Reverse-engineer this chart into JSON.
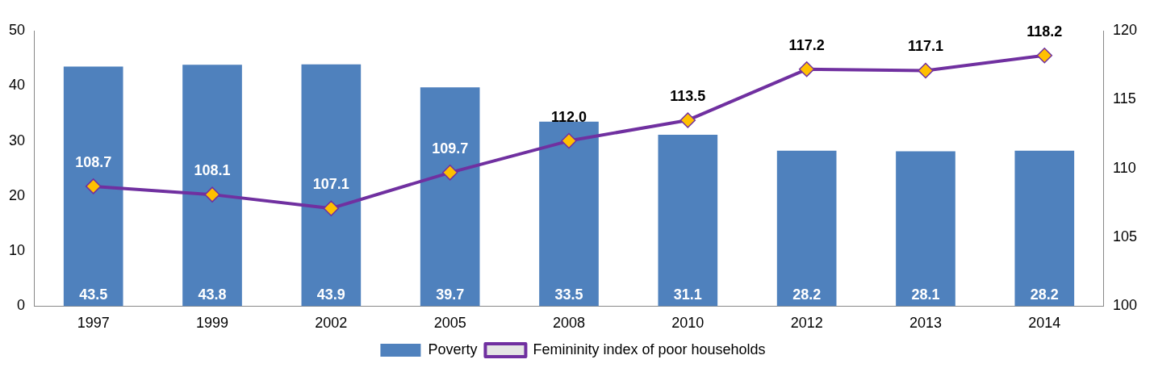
{
  "chart_data": {
    "type": "bar",
    "categories": [
      "1997",
      "1999",
      "2002",
      "2005",
      "2008",
      "2010",
      "2012",
      "2013",
      "2014"
    ],
    "series": [
      {
        "name": "Poverty",
        "color": "#4f81bd",
        "values": [
          43.5,
          43.8,
          43.9,
          39.7,
          33.5,
          31.1,
          28.2,
          28.1,
          28.2
        ],
        "value_labels": [
          "43.5",
          "43.8",
          "43.9",
          "39.7",
          "33.5",
          "31.1",
          "28.2",
          "28.1",
          "28.2"
        ]
      },
      {
        "name": "Femininity index of poor households",
        "type": "line",
        "axis": "y2",
        "color": "#7030a0",
        "values": [
          108.7,
          108.1,
          107.1,
          109.7,
          112.0,
          113.5,
          117.2,
          117.1,
          118.2
        ],
        "value_labels": [
          "108.7",
          "108.1",
          "107.1",
          "109.7",
          "112.0",
          "113.5",
          "117.2",
          "117.1",
          "118.2"
        ]
      }
    ],
    "ylim": [
      0,
      50
    ],
    "yticks": [
      0,
      10,
      20,
      30,
      40,
      50
    ],
    "y2lim": [
      100,
      120
    ],
    "y2ticks": [
      100,
      105,
      110,
      115,
      120
    ],
    "grid": false,
    "legend": "bottom",
    "marker": "diamond",
    "line_style": "solid"
  }
}
